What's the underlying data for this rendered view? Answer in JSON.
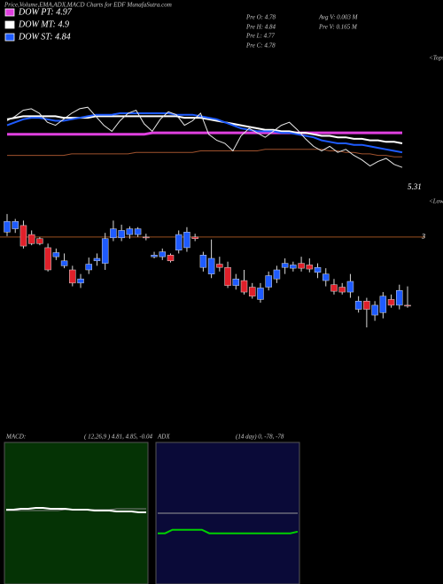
{
  "chart_data": [
    {
      "type": "line",
      "title": "Price,Volume,EMA,ADX,MACD Charts for EDF MunafaSutra.com",
      "stats": [
        "Pre  O: 4.78",
        "Pre  H: 4.84",
        "Pre  L: 4.77",
        "Pre  C: 4.78",
        "Avg V: 0.003 M",
        "Pre  V: 0.165 M"
      ],
      "annotations": [
        "5.31",
        "<Tops",
        "<Lows"
      ],
      "ylim": [
        4.5,
        5.5
      ],
      "series": [
        {
          "color": "#a0522d",
          "values": [
            4.82,
            4.82,
            4.82,
            4.82,
            4.82,
            4.82,
            4.82,
            4.82,
            4.83,
            4.83,
            4.83,
            4.83,
            4.83,
            4.83,
            4.83,
            4.83,
            4.84,
            4.84,
            4.84,
            4.84,
            4.84,
            4.84,
            4.84,
            4.84,
            4.85,
            4.85,
            4.85,
            4.85,
            4.85,
            4.85,
            4.85,
            4.85,
            4.86,
            4.86,
            4.86,
            4.86,
            4.86,
            4.86,
            4.86,
            4.86,
            4.85,
            4.85,
            4.84,
            4.84,
            4.83,
            4.83,
            4.82,
            4.82,
            4.81,
            4.81
          ]
        },
        {
          "name": "DOW PT: 4.97",
          "color": "#e040e0",
          "values": [
            4.96,
            4.96,
            4.96,
            4.96,
            4.96,
            4.96,
            4.96,
            4.96,
            4.96,
            4.96,
            4.96,
            4.96,
            4.96,
            4.96,
            4.96,
            4.96,
            4.96,
            4.96,
            4.97,
            4.97,
            4.97,
            4.97,
            4.97,
            4.97,
            4.97,
            4.97,
            4.97,
            4.97,
            4.97,
            4.97,
            4.97,
            4.97,
            4.97,
            4.97,
            4.97,
            4.97,
            4.97,
            4.97,
            4.97,
            4.97,
            4.97,
            4.97,
            4.97,
            4.97,
            4.97,
            4.97,
            4.97,
            4.97,
            4.97,
            4.97
          ]
        },
        {
          "name": "DOW MT: 4.9",
          "color": "#ffffff",
          "values": [
            5.06,
            5.07,
            5.08,
            5.08,
            5.08,
            5.08,
            5.08,
            5.07,
            5.07,
            5.07,
            5.07,
            5.08,
            5.08,
            5.08,
            5.08,
            5.08,
            5.08,
            5.08,
            5.08,
            5.08,
            5.08,
            5.08,
            5.07,
            5.07,
            5.07,
            5.06,
            5.05,
            5.04,
            5.03,
            5.02,
            5.01,
            5.0,
            4.99,
            4.99,
            4.98,
            4.98,
            4.97,
            4.97,
            4.96,
            4.95,
            4.95,
            4.94,
            4.94,
            4.93,
            4.93,
            4.92,
            4.92,
            4.91,
            4.91,
            4.9
          ]
        },
        {
          "name": "DOW ST: 4.84",
          "color": "#1e5bff",
          "values": [
            5.02,
            5.04,
            5.06,
            5.07,
            5.07,
            5.06,
            5.05,
            5.05,
            5.06,
            5.07,
            5.08,
            5.09,
            5.09,
            5.09,
            5.1,
            5.1,
            5.1,
            5.1,
            5.1,
            5.1,
            5.1,
            5.09,
            5.09,
            5.09,
            5.08,
            5.07,
            5.06,
            5.04,
            5.02,
            5.0,
            4.99,
            4.98,
            4.98,
            4.98,
            4.97,
            4.97,
            4.96,
            4.95,
            4.94,
            4.92,
            4.91,
            4.9,
            4.9,
            4.89,
            4.89,
            4.88,
            4.87,
            4.86,
            4.85,
            4.84
          ]
        },
        {
          "color": "#e8e8e8",
          "values": [
            5.05,
            5.08,
            5.12,
            5.13,
            5.1,
            5.04,
            5.02,
            5.06,
            5.1,
            5.13,
            5.14,
            5.08,
            5.02,
            4.98,
            5.05,
            5.1,
            5.12,
            5.03,
            4.98,
            5.06,
            5.11,
            5.09,
            5.02,
            5.05,
            5.1,
            4.96,
            4.92,
            4.9,
            4.85,
            4.95,
            5.0,
            4.97,
            4.94,
            4.98,
            5.02,
            5.04,
            4.99,
            4.93,
            4.88,
            4.85,
            4.88,
            4.84,
            4.86,
            4.82,
            4.79,
            4.75,
            4.78,
            4.8,
            4.76,
            4.74
          ]
        }
      ]
    },
    {
      "type": "candlestick",
      "ylim": [
        1.9,
        3.3
      ],
      "level": 3,
      "level_color": "#9a5020",
      "up_color": "#1e5bff",
      "down_color": "#e0202a",
      "open": [
        3.06,
        3.1,
        3.14,
        3.03,
        2.98,
        2.87,
        2.76,
        2.65,
        2.6,
        2.44,
        2.6,
        2.71,
        2.68,
        2.99,
        2.99,
        3.03,
        3.03,
        3.0,
        2.76,
        2.76,
        2.78,
        2.84,
        2.87,
        3.0,
        2.63,
        2.55,
        2.67,
        2.63,
        2.41,
        2.47,
        2.39,
        2.24,
        2.39,
        2.49,
        2.63,
        2.62,
        2.68,
        2.66,
        2.57,
        2.47,
        2.42,
        2.39,
        2.33,
        2.12,
        2.22,
        2.05,
        2.08,
        2.24,
        2.17,
        2.17
      ],
      "high": [
        3.28,
        3.22,
        3.2,
        3.08,
        3.0,
        2.92,
        2.86,
        2.8,
        2.65,
        2.55,
        2.75,
        2.8,
        3.05,
        3.2,
        3.15,
        3.13,
        3.12,
        3.04,
        2.82,
        2.86,
        2.8,
        3.08,
        3.12,
        3.04,
        2.82,
        2.97,
        2.76,
        2.7,
        2.55,
        2.6,
        2.44,
        2.44,
        2.58,
        2.65,
        2.74,
        2.7,
        2.76,
        2.74,
        2.68,
        2.62,
        2.49,
        2.44,
        2.55,
        2.28,
        2.26,
        2.22,
        2.33,
        2.3,
        2.42,
        2.4
      ],
      "low": [
        3.01,
        3.05,
        2.86,
        2.9,
        2.9,
        2.58,
        2.72,
        2.62,
        2.4,
        2.38,
        2.55,
        2.65,
        2.6,
        2.95,
        2.95,
        2.98,
        3.0,
        2.96,
        2.74,
        2.72,
        2.69,
        2.8,
        2.82,
        2.95,
        2.58,
        2.5,
        2.58,
        2.38,
        2.36,
        2.3,
        2.25,
        2.2,
        2.35,
        2.44,
        2.55,
        2.58,
        2.58,
        2.57,
        2.5,
        2.4,
        2.3,
        2.3,
        2.26,
        2.08,
        1.9,
        1.98,
        2.01,
        2.14,
        2.12,
        2.14
      ],
      "close": [
        3.19,
        3.19,
        2.89,
        2.92,
        2.92,
        2.6,
        2.81,
        2.71,
        2.44,
        2.49,
        2.67,
        2.74,
        2.98,
        3.1,
        3.08,
        3.1,
        3.1,
        2.99,
        2.78,
        2.82,
        2.71,
        3.03,
        3.06,
        2.98,
        2.78,
        2.74,
        2.63,
        2.41,
        2.49,
        2.33,
        2.28,
        2.38,
        2.53,
        2.6,
        2.68,
        2.66,
        2.62,
        2.61,
        2.63,
        2.55,
        2.34,
        2.33,
        2.46,
        2.22,
        2.12,
        2.17,
        2.28,
        2.17,
        2.35,
        2.16
      ]
    },
    {
      "type": "line",
      "title": "MACD:",
      "subtitle": "( 12,26,9 ) 4.81, 4.85, -0.04",
      "background": "#053305",
      "ylim": [
        4.0,
        5.6
      ],
      "series": [
        {
          "color": "#808080",
          "values": [
            4.83,
            4.83,
            4.83,
            4.83,
            4.83,
            4.83,
            4.83,
            4.83,
            4.84,
            4.84,
            4.84,
            4.84,
            4.84,
            4.84,
            4.84,
            4.85,
            4.85,
            4.85,
            4.85,
            4.85
          ]
        },
        {
          "color": "#ffffff",
          "values": [
            4.84,
            4.84,
            4.85,
            4.85,
            4.86,
            4.86,
            4.85,
            4.85,
            4.85,
            4.84,
            4.84,
            4.84,
            4.83,
            4.83,
            4.83,
            4.82,
            4.82,
            4.82,
            4.81,
            4.81
          ]
        }
      ]
    },
    {
      "type": "line",
      "title": "ADX",
      "subtitle": "(14 day) 0, -78, -78",
      "background": "#0a0a38",
      "ylim": [
        -300,
        300
      ],
      "series": [
        {
          "color": "#9a9a9a",
          "values": [
            0,
            0,
            0,
            0,
            0,
            0,
            0,
            0,
            0,
            0,
            0,
            0,
            0,
            0,
            0,
            0,
            0,
            0,
            0,
            0
          ]
        },
        {
          "color": "#00d000",
          "values": [
            -85,
            -85,
            -70,
            -70,
            -70,
            -70,
            -70,
            -85,
            -85,
            -85,
            -85,
            -85,
            -85,
            -85,
            -85,
            -85,
            -85,
            -85,
            -85,
            -78
          ]
        }
      ]
    }
  ]
}
